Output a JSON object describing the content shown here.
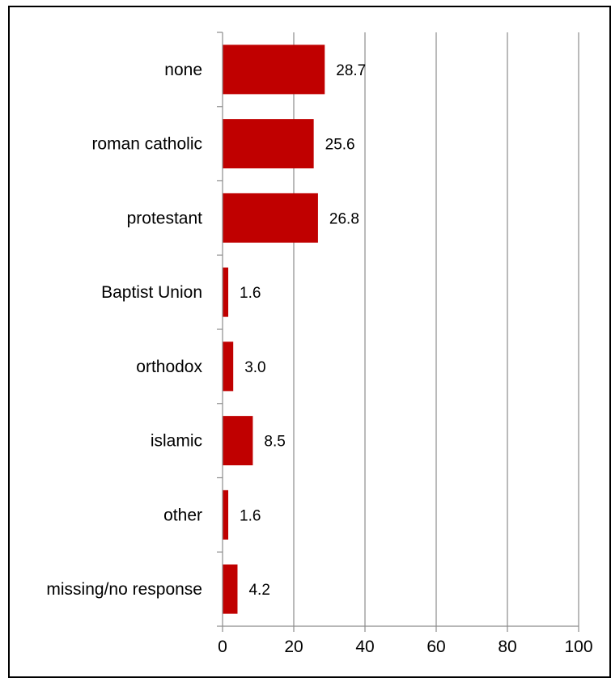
{
  "chart_data": {
    "type": "bar",
    "orientation": "horizontal",
    "categories": [
      "none",
      "roman  catholic",
      "protestant",
      "Baptist Union",
      "orthodox",
      "islamic",
      "other",
      "missing/no response"
    ],
    "values": [
      28.7,
      25.6,
      26.8,
      1.6,
      3.0,
      8.5,
      1.6,
      4.2
    ],
    "data_labels": [
      "28.7",
      "25.6",
      "26.8",
      "1.6",
      "3.0",
      "8.5",
      "1.6",
      "4.2"
    ],
    "xlim": [
      0,
      100
    ],
    "x_ticks": [
      0,
      20,
      40,
      60,
      80,
      100
    ],
    "grid": "vertical",
    "legend": "none",
    "colors": {
      "bar": "#c00000",
      "grid": "#8c8c8c",
      "axis": "#8c8c8c"
    }
  }
}
